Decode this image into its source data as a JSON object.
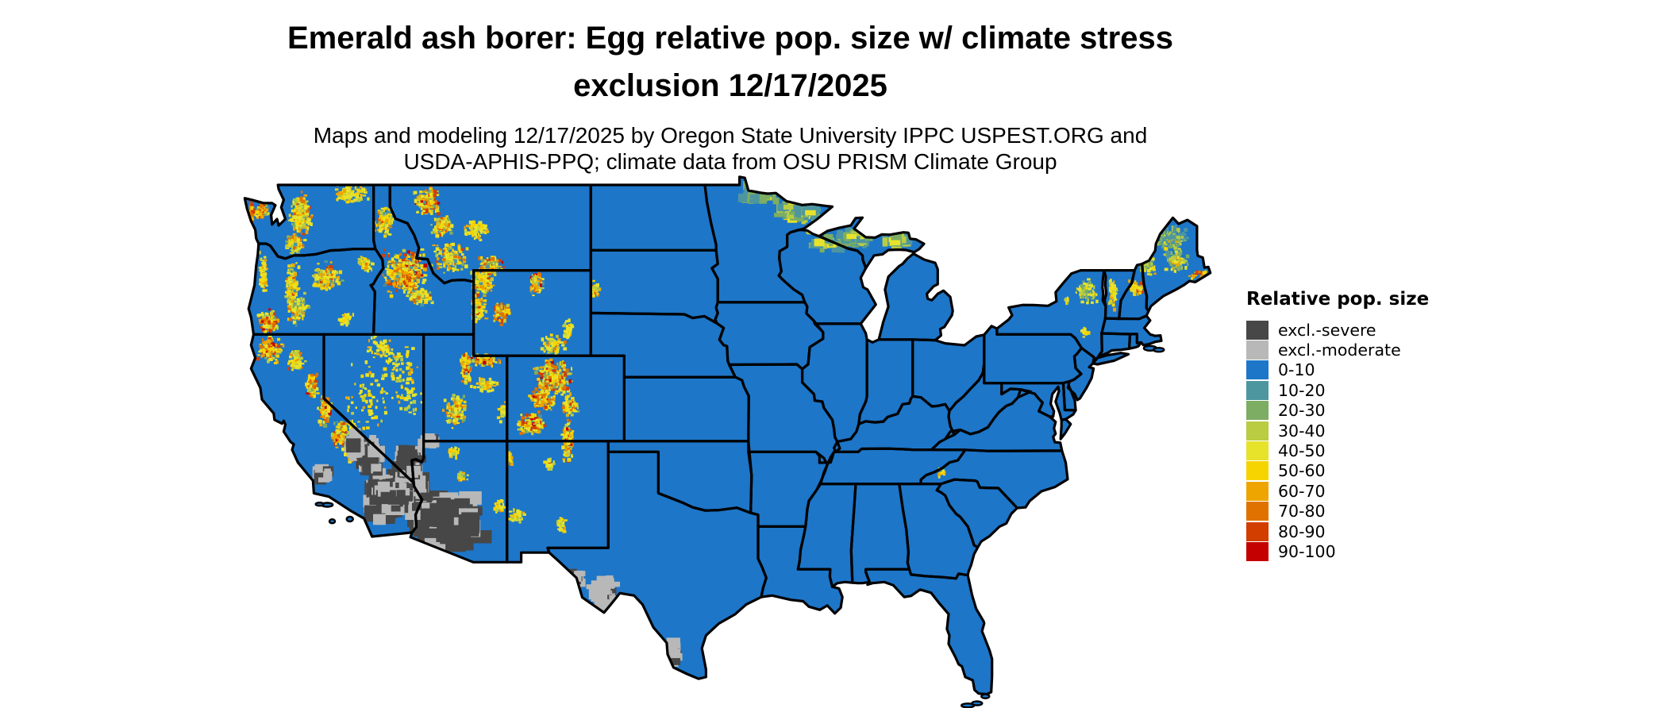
{
  "header": {
    "title_line1": "Emerald ash borer: Egg relative pop. size w/ climate stress",
    "title_line2": "exclusion 12/17/2025",
    "subtitle_line1": "Maps and modeling 12/17/2025 by Oregon State University IPPC USPEST.ORG and",
    "subtitle_line2": "USDA-APHIS-PPQ; climate data from OSU PRISM Climate Group"
  },
  "legend": {
    "title": "Relative pop. size",
    "items": [
      {
        "label": "excl.-severe",
        "color": "#474747"
      },
      {
        "label": "excl.-moderate",
        "color": "#b8b8b8"
      },
      {
        "label": "0-10",
        "color": "#1d76c8"
      },
      {
        "label": "10-20",
        "color": "#4d96a0"
      },
      {
        "label": "20-30",
        "color": "#7cad63"
      },
      {
        "label": "30-40",
        "color": "#b9cc42"
      },
      {
        "label": "40-50",
        "color": "#e7e32b"
      },
      {
        "label": "50-60",
        "color": "#f6d400"
      },
      {
        "label": "60-70",
        "color": "#eea500"
      },
      {
        "label": "70-80",
        "color": "#e07200"
      },
      {
        "label": "80-90",
        "color": "#d23d00"
      },
      {
        "label": "90-100",
        "color": "#c40000"
      }
    ]
  },
  "map": {
    "region": "conterminous United States",
    "background": "#ffffff",
    "border_color": "#000000",
    "base_class": "0-10"
  }
}
